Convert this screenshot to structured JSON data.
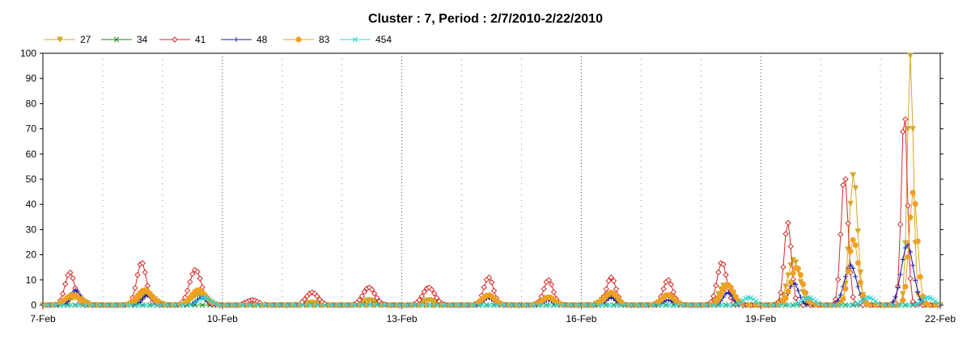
{
  "chart_data": {
    "type": "line",
    "title": "Cluster : 7, Period : 2/7/2010-2/22/2010",
    "xlabel": "",
    "ylabel": "",
    "ylim": [
      0,
      100
    ],
    "y_ticks": [
      0,
      10,
      20,
      30,
      40,
      50,
      60,
      70,
      80,
      90,
      100
    ],
    "x_ticks": [
      "7-Feb",
      "10-Feb",
      "13-Feb",
      "16-Feb",
      "19-Feb",
      "22-Feb"
    ],
    "x_domain_days": [
      7,
      22
    ],
    "grid": true,
    "legend": {
      "placement": "top-left",
      "items": [
        "27",
        "34",
        "41",
        "48",
        "83",
        "454"
      ]
    },
    "series": [
      {
        "name": "27",
        "color": "#d4a82a",
        "marker": "triangle-down",
        "events": [
          {
            "center": 7.55,
            "peak": 3,
            "width": 0.12
          },
          {
            "center": 8.75,
            "peak": 4,
            "width": 0.12
          },
          {
            "center": 9.6,
            "peak": 4,
            "width": 0.12
          },
          {
            "center": 11.5,
            "peak": 1,
            "width": 0.1
          },
          {
            "center": 12.45,
            "peak": 2,
            "width": 0.1
          },
          {
            "center": 13.45,
            "peak": 2,
            "width": 0.1
          },
          {
            "center": 14.45,
            "peak": 3,
            "width": 0.1
          },
          {
            "center": 15.45,
            "peak": 3,
            "width": 0.1
          },
          {
            "center": 16.45,
            "peak": 4,
            "width": 0.1
          },
          {
            "center": 17.45,
            "peak": 4,
            "width": 0.1
          },
          {
            "center": 18.4,
            "peak": 8,
            "width": 0.1
          },
          {
            "center": 19.55,
            "peak": 18,
            "width": 0.1
          },
          {
            "center": 20.55,
            "peak": 52,
            "width": 0.07
          },
          {
            "center": 21.5,
            "peak": 99,
            "width": 0.05
          }
        ]
      },
      {
        "name": "34",
        "color": "#178a17",
        "marker": "x",
        "events": [
          {
            "center": 12.5,
            "peak": 0.6,
            "width": 0.1
          }
        ]
      },
      {
        "name": "41",
        "color": "#d32b2b",
        "marker": "diamond",
        "events": [
          {
            "center": 7.45,
            "peak": 13,
            "width": 0.08
          },
          {
            "center": 8.65,
            "peak": 17,
            "width": 0.08
          },
          {
            "center": 9.55,
            "peak": 14,
            "width": 0.1
          },
          {
            "center": 10.5,
            "peak": 2,
            "width": 0.1
          },
          {
            "center": 11.5,
            "peak": 5,
            "width": 0.1
          },
          {
            "center": 12.45,
            "peak": 7,
            "width": 0.1
          },
          {
            "center": 13.45,
            "peak": 7,
            "width": 0.1
          },
          {
            "center": 14.45,
            "peak": 11,
            "width": 0.08
          },
          {
            "center": 15.45,
            "peak": 10,
            "width": 0.08
          },
          {
            "center": 16.5,
            "peak": 11,
            "width": 0.08
          },
          {
            "center": 17.45,
            "peak": 10,
            "width": 0.08
          },
          {
            "center": 18.35,
            "peak": 17,
            "width": 0.08
          },
          {
            "center": 19.45,
            "peak": 33,
            "width": 0.06
          },
          {
            "center": 20.4,
            "peak": 52,
            "width": 0.06
          },
          {
            "center": 21.4,
            "peak": 78,
            "width": 0.05
          }
        ]
      },
      {
        "name": "48",
        "color": "#1c1ca0",
        "marker": "plus",
        "events": [
          {
            "center": 7.55,
            "peak": 6,
            "width": 0.08
          },
          {
            "center": 8.75,
            "peak": 4,
            "width": 0.08
          },
          {
            "center": 9.65,
            "peak": 3,
            "width": 0.08
          },
          {
            "center": 14.45,
            "peak": 3,
            "width": 0.08
          },
          {
            "center": 15.45,
            "peak": 2,
            "width": 0.08
          },
          {
            "center": 16.5,
            "peak": 3,
            "width": 0.08
          },
          {
            "center": 17.45,
            "peak": 2,
            "width": 0.08
          },
          {
            "center": 18.45,
            "peak": 5,
            "width": 0.08
          },
          {
            "center": 19.55,
            "peak": 9,
            "width": 0.08
          },
          {
            "center": 20.5,
            "peak": 16,
            "width": 0.1
          },
          {
            "center": 21.45,
            "peak": 24,
            "width": 0.1
          }
        ]
      },
      {
        "name": "83",
        "color": "#f0a020",
        "marker": "circle",
        "events": [
          {
            "center": 7.5,
            "peak": 4,
            "width": 0.12
          },
          {
            "center": 8.7,
            "peak": 6,
            "width": 0.12
          },
          {
            "center": 9.6,
            "peak": 6,
            "width": 0.12
          },
          {
            "center": 14.45,
            "peak": 4,
            "width": 0.1
          },
          {
            "center": 15.45,
            "peak": 3,
            "width": 0.1
          },
          {
            "center": 16.5,
            "peak": 5,
            "width": 0.1
          },
          {
            "center": 17.45,
            "peak": 4,
            "width": 0.1
          },
          {
            "center": 18.45,
            "peak": 8,
            "width": 0.1
          },
          {
            "center": 19.6,
            "peak": 15,
            "width": 0.1
          },
          {
            "center": 20.55,
            "peak": 26,
            "width": 0.08
          },
          {
            "center": 21.55,
            "peak": 45,
            "width": 0.07
          }
        ]
      },
      {
        "name": "454",
        "color": "#2fd3d3",
        "marker": "x",
        "events": [
          {
            "center": 9.7,
            "peak": 3,
            "width": 0.1
          },
          {
            "center": 18.8,
            "peak": 3,
            "width": 0.1
          },
          {
            "center": 19.8,
            "peak": 3,
            "width": 0.1
          },
          {
            "center": 20.8,
            "peak": 3,
            "width": 0.1
          },
          {
            "center": 21.8,
            "peak": 3,
            "width": 0.1
          }
        ]
      }
    ]
  }
}
